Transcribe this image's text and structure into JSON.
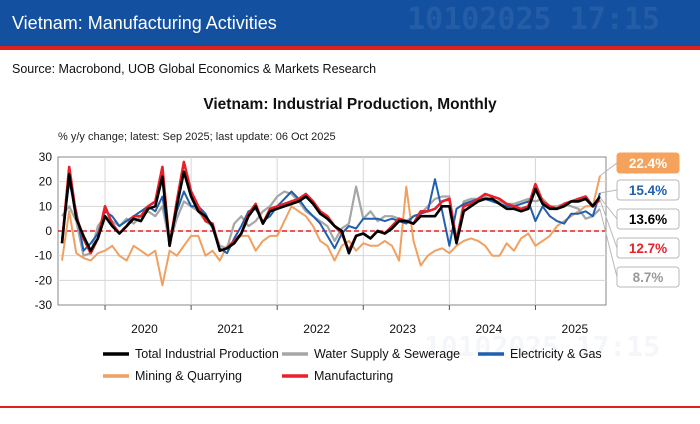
{
  "banner": {
    "title": "Vietnam: Manufacturing Activities",
    "watermark": "10102025 17:15"
  },
  "source": "Source: Macrobond, UOB Global Economics & Markets Research",
  "colors": {
    "total": "#000000",
    "water": "#a6a6a6",
    "electricity": "#1f5fb0",
    "mining": "#f0a060",
    "manufacturing": "#e8202a",
    "zero_line": "#e02020",
    "banner": "#1450a0"
  },
  "chart_data": {
    "type": "line",
    "title": "Vietnam: Industrial Production, Monthly",
    "subtitle": "% y/y change; latest: Sep 2025;  last update: 06 Oct 2025",
    "ylim": [
      -30,
      30
    ],
    "yticks": [
      30,
      20,
      10,
      0,
      -10,
      -20,
      -30
    ],
    "x_start": "2019-07",
    "x_end": "2025-09",
    "years": [
      "2020",
      "2021",
      "2022",
      "2023",
      "2024",
      "2025"
    ],
    "grid": true,
    "legend_position": "bottom",
    "series": [
      {
        "name": "Total Industrial Production",
        "color": "#000000",
        "latest_label": "13.6%",
        "latest_value": 13.6,
        "values": [
          -5,
          23,
          5,
          -2,
          -8,
          -3,
          6,
          2,
          -1,
          2,
          5,
          4,
          9,
          10,
          22,
          -6,
          10,
          24,
          14,
          8,
          6,
          2,
          -8,
          -7,
          -5,
          -1,
          6,
          10,
          3,
          8,
          9,
          10,
          11,
          12,
          14,
          11,
          7,
          5,
          2,
          0,
          -9,
          -2,
          -1,
          -3,
          0,
          -1,
          1,
          4,
          4,
          3,
          6,
          6,
          6,
          10,
          10,
          -5,
          8,
          10,
          12,
          13,
          13,
          11,
          9,
          9,
          8,
          9,
          17,
          11,
          9,
          9,
          10,
          12,
          12,
          13,
          10,
          14
        ]
      },
      {
        "name": "Water Supply & Sewerage",
        "color": "#a6a6a6",
        "latest_label": "8.7%",
        "latest_value": 8.7,
        "values": [
          6,
          10,
          4,
          -10,
          -9,
          2,
          6,
          4,
          2,
          5,
          3,
          6,
          8,
          6,
          10,
          -5,
          5,
          12,
          10,
          8,
          4,
          2,
          -6,
          -7,
          3,
          6,
          2,
          4,
          8,
          10,
          14,
          16,
          15,
          12,
          8,
          6,
          4,
          2,
          -4,
          1,
          3,
          18,
          5,
          8,
          4,
          6,
          6,
          5,
          4,
          6,
          7,
          10,
          13,
          14,
          14,
          -4,
          12,
          13,
          13,
          14,
          12,
          12,
          11,
          11,
          12,
          13,
          12,
          13,
          10,
          10,
          11,
          10,
          9,
          5,
          6,
          9
        ]
      },
      {
        "name": "Electricity & Gas",
        "color": "#1f5fb0",
        "latest_label": "15.4%",
        "latest_value": 15.4,
        "values": [
          -3,
          20,
          8,
          -8,
          -5,
          -1,
          8,
          6,
          2,
          4,
          6,
          8,
          10,
          8,
          14,
          -4,
          8,
          16,
          10,
          10,
          7,
          1,
          -7,
          -9,
          -3,
          2,
          8,
          9,
          4,
          6,
          10,
          13,
          16,
          13,
          9,
          6,
          3,
          -2,
          -7,
          -1,
          2,
          1,
          5,
          5,
          5,
          4,
          5,
          4,
          3,
          6,
          7,
          8,
          21,
          8,
          -6,
          9,
          11,
          12,
          13,
          13,
          12,
          11,
          10,
          10,
          11,
          12,
          4,
          10,
          6,
          4,
          3,
          7,
          7,
          8,
          6,
          15.4
        ]
      },
      {
        "name": "Mining & Quarrying",
        "color": "#f0a060",
        "latest_label": "22.4%",
        "latest_value": 22.4,
        "values": [
          -12,
          8,
          -9,
          -11,
          -12,
          -9,
          -8,
          -6,
          -10,
          -12,
          -6,
          -8,
          -10,
          -8,
          -22,
          -8,
          -10,
          -6,
          -2,
          -2,
          -10,
          -8,
          -12,
          -6,
          -4,
          -2,
          -2,
          -8,
          -4,
          -2,
          -2,
          4,
          10,
          8,
          6,
          2,
          -4,
          -6,
          -12,
          -6,
          -4,
          -8,
          -5,
          -6,
          -6,
          -4,
          -6,
          -12,
          18,
          -4,
          -14,
          -10,
          -8,
          -7,
          -9,
          -6,
          -4,
          -3,
          -4,
          -6,
          -10,
          -10,
          -5,
          -8,
          -3,
          -1,
          -6,
          -4,
          -2,
          2,
          4,
          6,
          8,
          10,
          10,
          22.4
        ]
      },
      {
        "name": "Manufacturing",
        "color": "#e8202a",
        "latest_label": "12.7%",
        "latest_value": 12.7,
        "values": [
          -5,
          26,
          6,
          -3,
          -9,
          -3,
          10,
          3,
          -1,
          2,
          6,
          6,
          10,
          12,
          26,
          -6,
          12,
          28,
          16,
          10,
          4,
          3,
          -8,
          -7,
          -4,
          -1,
          7,
          11,
          3,
          9,
          10,
          11,
          12,
          13,
          15,
          12,
          8,
          6,
          2,
          -1,
          -8,
          -2,
          -1,
          -3,
          0,
          -1,
          2,
          5,
          4,
          3,
          8,
          8,
          9,
          12,
          13,
          -4,
          10,
          11,
          13,
          15,
          14,
          13,
          11,
          10,
          9,
          10,
          19,
          12,
          10,
          9,
          11,
          12,
          13,
          14,
          10,
          12.7
        ]
      }
    ]
  }
}
